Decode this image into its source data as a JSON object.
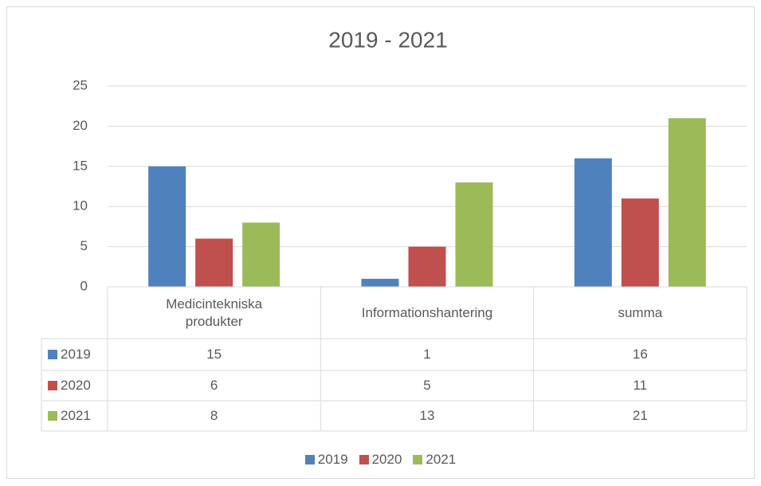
{
  "chart_data": {
    "type": "bar",
    "title": "2019 - 2021",
    "categories": [
      "Medicintekniska produkter",
      "Informationshantering",
      "summa"
    ],
    "series": [
      {
        "name": "2019",
        "color": "#4f81bd",
        "values": [
          15,
          1,
          16
        ]
      },
      {
        "name": "2020",
        "color": "#c0504d",
        "values": [
          6,
          5,
          11
        ]
      },
      {
        "name": "2021",
        "color": "#9bbb59",
        "values": [
          8,
          13,
          21
        ]
      }
    ],
    "ylim": [
      0,
      25
    ],
    "yticks": [
      0,
      5,
      10,
      15,
      20,
      25
    ],
    "grid": true,
    "legend": "bottom",
    "data_table": true
  }
}
